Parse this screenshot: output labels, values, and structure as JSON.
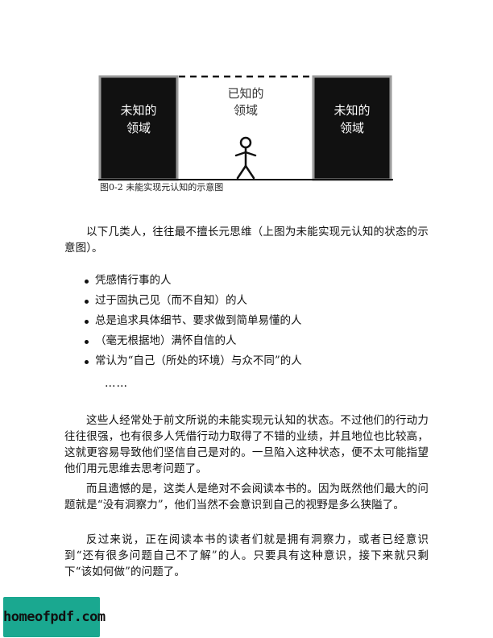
{
  "figure": {
    "left_box_label": [
      "未知的",
      "领域"
    ],
    "center_label": [
      "已知的",
      "领域"
    ],
    "right_box_label": [
      "未知的",
      "领域"
    ],
    "caption": "图0-2 未能实现元认知的示意图"
  },
  "intro_paragraph": "以下几类人，往往最不擅长元思维（上图为未能实现元认知的状态的示意图）。",
  "bullets": [
    "凭感情行事的人",
    "过于固执己见（而不自知）的人",
    "总是追求具体细节、要求做到简单易懂的人",
    "（毫无根据地）满怀自信的人",
    "常认为“自己（所处的环境）与众不同”的人"
  ],
  "ellipsis": "……",
  "paragraphs": [
    "这些人经常处于前文所说的未能实现元认知的状态。不过他们的行动力往往很强，也有很多人凭借行动力取得了不错的业绩，并且地位也比较高，这就更容易导致他们坚信自己是对的。一旦陷入这种状态，便不太可能指望他们用元思维去思考问题了。",
    "而且遗憾的是，这类人是绝对不会阅读本书的。因为既然他们最大的问题就是“没有洞察力”，他们当然不会意识到自己的视野是多么狭隘了。",
    "反过来说，正在阅读本书的读者们就是拥有洞察力，或者已经意识到“还有很多问题自己不了解”的人。只要具有这种意识，接下来就只剩下“该如何做”的问题了。"
  ],
  "watermark": "homeofpdf.com",
  "colors": {
    "box_fill": "#111111",
    "box_border": "#9a9a9a",
    "watermark_bg": "#1aa890"
  }
}
